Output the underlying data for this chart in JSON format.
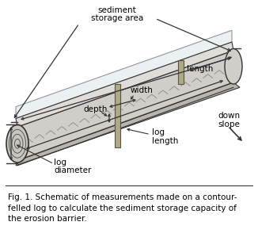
{
  "fig_width": 3.26,
  "fig_height": 2.99,
  "dpi": 100,
  "bg_color": "#ffffff",
  "caption_lines": [
    "Fig. 1. Schematic of measurements made on a contour-",
    "felled log to calculate the sediment storage capacity of",
    "the erosion barrier."
  ],
  "caption_fontsize": 7.5,
  "label_fontsize": 7.5,
  "log_fill": "#d0cec8",
  "log_edge": "#333333",
  "top_fill": "#e8ebe8",
  "sediment_fill": "#dce8dc",
  "stake_fill": "#b0a888",
  "stake_edge": "#555544"
}
